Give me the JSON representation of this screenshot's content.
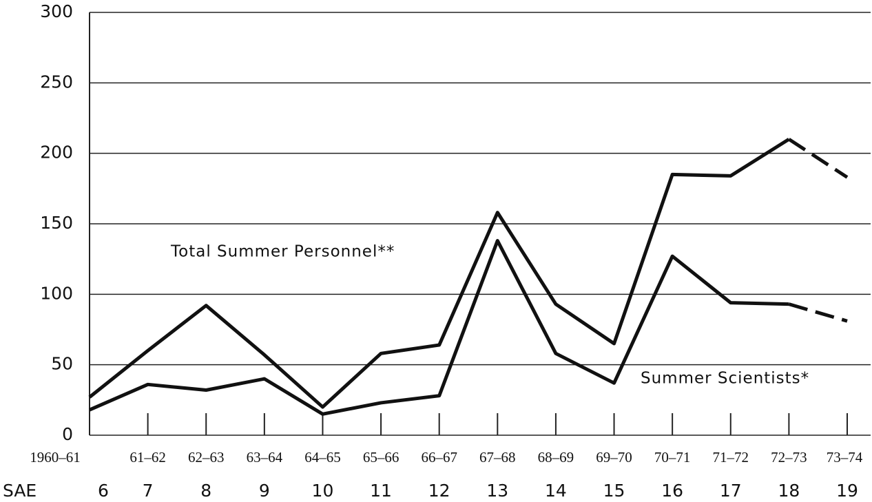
{
  "chart_data": {
    "type": "line",
    "categories": [
      "1960–61",
      "61–62",
      "62–63",
      "63–64",
      "64–65",
      "65–66",
      "66–67",
      "67–68",
      "68–69",
      "69–70",
      "70–71",
      "71–72",
      "72–73",
      "73–74"
    ],
    "secondary_label": "SAE",
    "secondary_categories": [
      6,
      7,
      8,
      9,
      10,
      11,
      12,
      13,
      14,
      15,
      16,
      17,
      18,
      19
    ],
    "series": [
      {
        "name": "Total Summer Personnel**",
        "color": "#111111",
        "dashed_from": 12,
        "values": [
          27,
          60,
          92,
          57,
          20,
          58,
          64,
          158,
          93,
          65,
          185,
          184,
          210,
          183
        ]
      },
      {
        "name": "Summer Scientists*",
        "color": "#111111",
        "dashed_from": 12,
        "values": [
          18,
          36,
          32,
          40,
          15,
          23,
          28,
          138,
          58,
          37,
          127,
          94,
          93,
          81
        ]
      }
    ],
    "ylim": [
      0,
      300
    ],
    "yticks": [
      0,
      50,
      100,
      150,
      200,
      250,
      300
    ],
    "grid": true
  }
}
